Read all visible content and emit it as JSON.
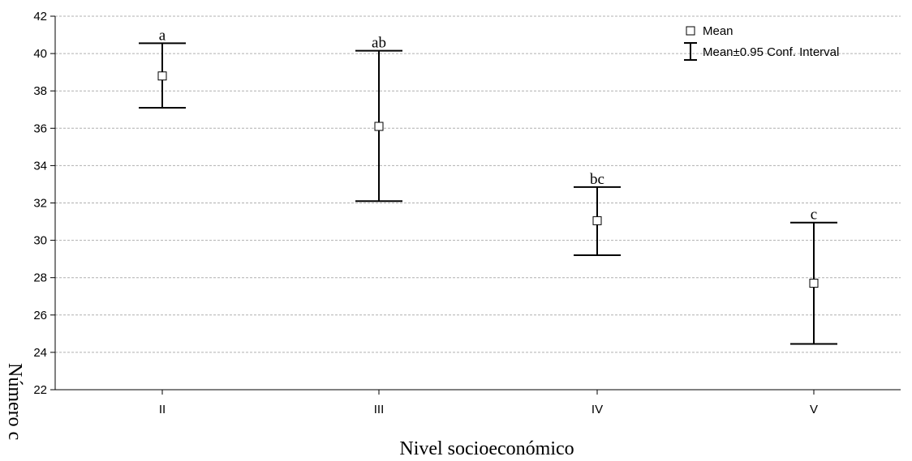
{
  "chart_data": {
    "type": "scatter",
    "subtype": "means-with-error-bars",
    "xlabel": "Nivel socioeconómico",
    "ylabel": "Número c",
    "ylim": [
      22,
      42
    ],
    "yticks": [
      22,
      24,
      26,
      28,
      30,
      32,
      34,
      36,
      38,
      40,
      42
    ],
    "grid": true,
    "legend_position": "top-right",
    "categories": [
      "II",
      "III",
      "IV",
      "V"
    ],
    "series": [
      {
        "name": "Mean",
        "values": [
          38.8,
          36.1,
          31.05,
          27.7
        ],
        "ci_lower": [
          37.1,
          32.1,
          29.2,
          24.45
        ],
        "ci_upper": [
          40.55,
          40.15,
          32.85,
          30.95
        ],
        "group_labels": [
          "a",
          "ab",
          "bc",
          "c"
        ]
      }
    ],
    "legend": [
      {
        "label": "Mean",
        "symbol": "square-marker"
      },
      {
        "label": "Mean±0.95 Conf. Interval",
        "symbol": "error-bar"
      }
    ]
  }
}
